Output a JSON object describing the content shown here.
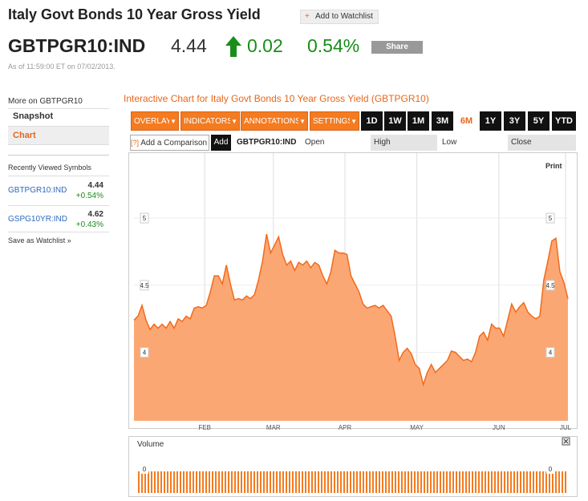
{
  "header": {
    "title": "Italy Govt Bonds 10 Year Gross Yield",
    "watchlist": "Add to Watchlist",
    "ticker": "GBTPGR10:IND",
    "price": "4.44",
    "change": "0.02",
    "change_pct": "0.54%",
    "share": "Share",
    "as_of": "As of 11:59:00 ET on 07/02/2013."
  },
  "sidebar": {
    "heading": "More on GBTPGR10",
    "links": [
      "Snapshot",
      "Chart"
    ],
    "recent_heading": "Recently Viewed Symbols",
    "recent": [
      {
        "symbol": "GBTPGR10:IND",
        "price": "4.44",
        "change": "+0.54%"
      },
      {
        "symbol": "GSPG10YR:IND",
        "price": "4.62",
        "change": "+0.43%"
      }
    ],
    "save": "Save as Watchlist"
  },
  "toolbar": {
    "heading": "Interactive Chart for Italy Govt Bonds 10 Year Gross Yield (GBTPGR10)",
    "menus": [
      "OVERLAYS",
      "INDICATORS",
      "ANNOTATIONS",
      "SETTINGS"
    ],
    "ranges": [
      "1D",
      "1W",
      "1M",
      "3M",
      "6M",
      "1Y",
      "3Y",
      "5Y",
      "YTD"
    ],
    "selected_range": "6M",
    "compare": "Add a Comparison",
    "add": "Add",
    "symbol": "GBTPGR10:IND",
    "fields": [
      "Open",
      "High",
      "Low",
      "Close"
    ],
    "print": "Print"
  },
  "chart_data": {
    "type": "area",
    "color": "#f26a1b",
    "fill": "#fba774",
    "grid": true,
    "values": [
      4.24,
      4.27,
      4.35,
      4.24,
      4.17,
      4.21,
      4.18,
      4.21,
      4.18,
      4.23,
      4.18,
      4.25,
      4.23,
      4.27,
      4.25,
      4.33,
      4.34,
      4.33,
      4.35,
      4.45,
      4.57,
      4.57,
      4.51,
      4.65,
      4.51,
      4.39,
      4.4,
      4.39,
      4.42,
      4.4,
      4.43,
      4.54,
      4.68,
      4.88,
      4.74,
      4.8,
      4.86,
      4.73,
      4.65,
      4.68,
      4.61,
      4.67,
      4.65,
      4.68,
      4.63,
      4.67,
      4.65,
      4.57,
      4.51,
      4.6,
      4.76,
      4.74,
      4.74,
      4.73,
      4.57,
      4.51,
      4.45,
      4.36,
      4.33,
      4.34,
      4.35,
      4.33,
      4.35,
      4.31,
      4.27,
      4.12,
      3.94,
      4.0,
      4.03,
      3.99,
      3.91,
      3.88,
      3.76,
      3.85,
      3.91,
      3.85,
      3.88,
      3.91,
      3.94,
      4.01,
      4.0,
      3.97,
      3.94,
      3.95,
      3.93,
      4.0,
      4.12,
      4.15,
      4.09,
      4.21,
      4.18,
      4.18,
      4.12,
      4.24,
      4.36,
      4.3,
      4.34,
      4.37,
      4.3,
      4.27,
      4.25,
      4.27,
      4.54,
      4.68,
      4.83,
      4.85,
      4.6,
      4.52,
      4.4
    ],
    "xlim": [
      0,
      108
    ],
    "xticks": [
      {
        "value": 17.6,
        "label": "FEB"
      },
      {
        "value": 34.7,
        "label": "MAR"
      },
      {
        "value": 52.5,
        "label": "APR"
      },
      {
        "value": 70.4,
        "label": "MAY"
      },
      {
        "value": 90.8,
        "label": "JUN"
      },
      {
        "value": 107.4,
        "label": "JUL"
      }
    ],
    "ylim": [
      3.49,
      5.46
    ],
    "yticks": [
      4,
      4.5,
      5
    ],
    "volume": {
      "title": "Volume",
      "yticks": [
        0
      ]
    }
  }
}
